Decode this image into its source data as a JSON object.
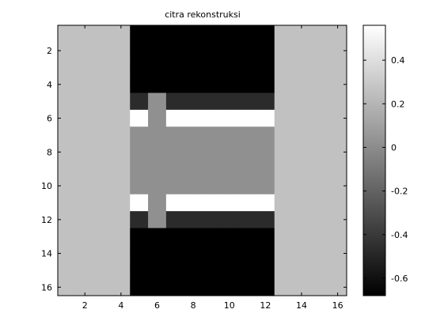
{
  "chart_data": {
    "type": "heatmap",
    "title": "citra rekonstruksi",
    "xlabel": "",
    "ylabel": "",
    "x_ticks": [
      2,
      4,
      6,
      8,
      10,
      12,
      14,
      16
    ],
    "y_ticks": [
      2,
      4,
      6,
      8,
      10,
      12,
      14,
      16
    ],
    "xlim": [
      0.5,
      16.5
    ],
    "ylim": [
      16.5,
      0.5
    ],
    "y_direction": "reversed",
    "colormap": "gray",
    "clim": [
      -0.68,
      0.56
    ],
    "colorbar": {
      "ticks": [
        0.4,
        0.2,
        0,
        -0.2,
        -0.4,
        -0.6
      ],
      "tick_labels": [
        "0.4",
        "0.2",
        "0",
        "-0.2",
        "-0.4",
        "-0.6"
      ]
    },
    "matrix": [
      [
        0.26,
        0.26,
        0.26,
        0.26,
        -0.68,
        -0.68,
        -0.68,
        -0.68,
        -0.68,
        -0.68,
        -0.68,
        -0.68,
        0.26,
        0.26,
        0.26,
        0.26
      ],
      [
        0.26,
        0.26,
        0.26,
        0.26,
        -0.68,
        -0.68,
        -0.68,
        -0.68,
        -0.68,
        -0.68,
        -0.68,
        -0.68,
        0.26,
        0.26,
        0.26,
        0.26
      ],
      [
        0.26,
        0.26,
        0.26,
        0.26,
        -0.68,
        -0.68,
        -0.68,
        -0.68,
        -0.68,
        -0.68,
        -0.68,
        -0.68,
        0.26,
        0.26,
        0.26,
        0.26
      ],
      [
        0.26,
        0.26,
        0.26,
        0.26,
        -0.68,
        -0.68,
        -0.68,
        -0.68,
        -0.68,
        -0.68,
        -0.68,
        -0.68,
        0.26,
        0.26,
        0.26,
        0.26
      ],
      [
        0.26,
        0.26,
        0.26,
        0.26,
        -0.47,
        0.02,
        -0.47,
        -0.47,
        -0.47,
        -0.47,
        -0.47,
        -0.47,
        0.26,
        0.26,
        0.26,
        0.26
      ],
      [
        0.26,
        0.26,
        0.26,
        0.26,
        0.56,
        0.02,
        0.56,
        0.56,
        0.56,
        0.56,
        0.56,
        0.56,
        0.26,
        0.26,
        0.26,
        0.26
      ],
      [
        0.26,
        0.26,
        0.26,
        0.26,
        0.02,
        0.02,
        0.02,
        0.02,
        0.02,
        0.02,
        0.02,
        0.02,
        0.26,
        0.26,
        0.26,
        0.26
      ],
      [
        0.26,
        0.26,
        0.26,
        0.26,
        0.02,
        0.02,
        0.02,
        0.02,
        0.02,
        0.02,
        0.02,
        0.02,
        0.26,
        0.26,
        0.26,
        0.26
      ],
      [
        0.26,
        0.26,
        0.26,
        0.26,
        0.02,
        0.02,
        0.02,
        0.02,
        0.02,
        0.02,
        0.02,
        0.02,
        0.26,
        0.26,
        0.26,
        0.26
      ],
      [
        0.26,
        0.26,
        0.26,
        0.26,
        0.02,
        0.02,
        0.02,
        0.02,
        0.02,
        0.02,
        0.02,
        0.02,
        0.26,
        0.26,
        0.26,
        0.26
      ],
      [
        0.26,
        0.26,
        0.26,
        0.26,
        0.56,
        0.02,
        0.56,
        0.56,
        0.56,
        0.56,
        0.56,
        0.56,
        0.26,
        0.26,
        0.26,
        0.26
      ],
      [
        0.26,
        0.26,
        0.26,
        0.26,
        -0.47,
        0.02,
        -0.47,
        -0.47,
        -0.47,
        -0.47,
        -0.47,
        -0.47,
        0.26,
        0.26,
        0.26,
        0.26
      ],
      [
        0.26,
        0.26,
        0.26,
        0.26,
        -0.68,
        -0.68,
        -0.68,
        -0.68,
        -0.68,
        -0.68,
        -0.68,
        -0.68,
        0.26,
        0.26,
        0.26,
        0.26
      ],
      [
        0.26,
        0.26,
        0.26,
        0.26,
        -0.68,
        -0.68,
        -0.68,
        -0.68,
        -0.68,
        -0.68,
        -0.68,
        -0.68,
        0.26,
        0.26,
        0.26,
        0.26
      ],
      [
        0.26,
        0.26,
        0.26,
        0.26,
        -0.68,
        -0.68,
        -0.68,
        -0.68,
        -0.68,
        -0.68,
        -0.68,
        -0.68,
        0.26,
        0.26,
        0.26,
        0.26
      ],
      [
        0.26,
        0.26,
        0.26,
        0.26,
        -0.68,
        -0.68,
        -0.68,
        -0.68,
        -0.68,
        -0.68,
        -0.68,
        -0.68,
        0.26,
        0.26,
        0.26,
        0.26
      ]
    ]
  }
}
